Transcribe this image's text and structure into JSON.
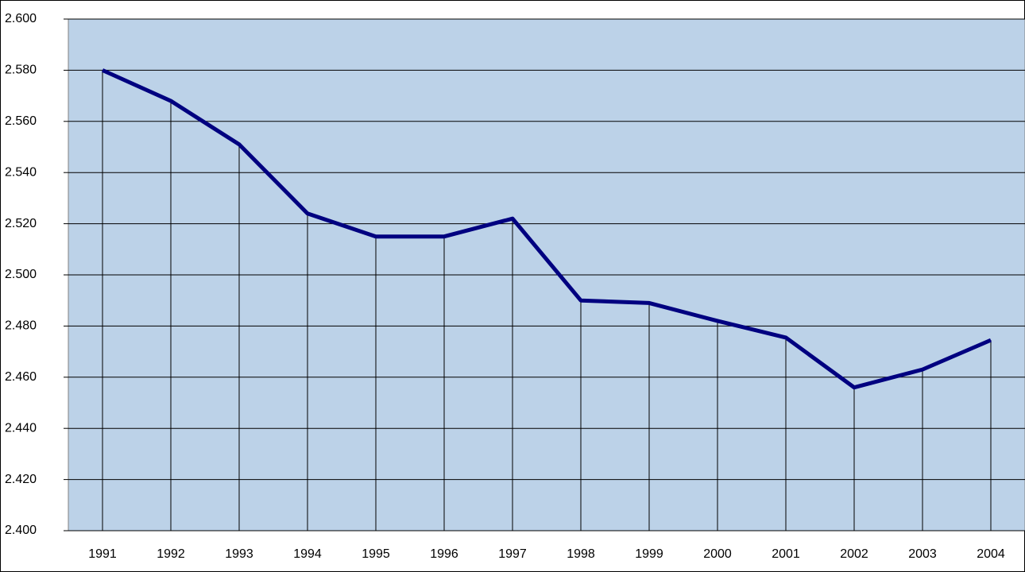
{
  "chart_data": {
    "type": "line",
    "categories": [
      "1991",
      "1992",
      "1993",
      "1994",
      "1995",
      "1996",
      "1997",
      "1998",
      "1999",
      "2000",
      "2001",
      "2002",
      "2003",
      "2004"
    ],
    "values": [
      2580,
      2568,
      2551,
      2524,
      2515,
      2515,
      2522,
      2490,
      2489,
      2482,
      2475.5,
      2456,
      2463,
      2474.5
    ],
    "color": "#000080",
    "ylim": [
      2400,
      2600
    ],
    "yticks": [
      {
        "value": 2400,
        "label": "2.400"
      },
      {
        "value": 2420,
        "label": "2.420"
      },
      {
        "value": 2440,
        "label": "2.440"
      },
      {
        "value": 2460,
        "label": "2.460"
      },
      {
        "value": 2480,
        "label": "2.480"
      },
      {
        "value": 2500,
        "label": "2.500"
      },
      {
        "value": 2520,
        "label": "2.520"
      },
      {
        "value": 2540,
        "label": "2.540"
      },
      {
        "value": 2560,
        "label": "2.560"
      },
      {
        "value": 2580,
        "label": "2.580"
      },
      {
        "value": 2600,
        "label": "2.600"
      }
    ],
    "grid": true,
    "drop_lines": true
  }
}
